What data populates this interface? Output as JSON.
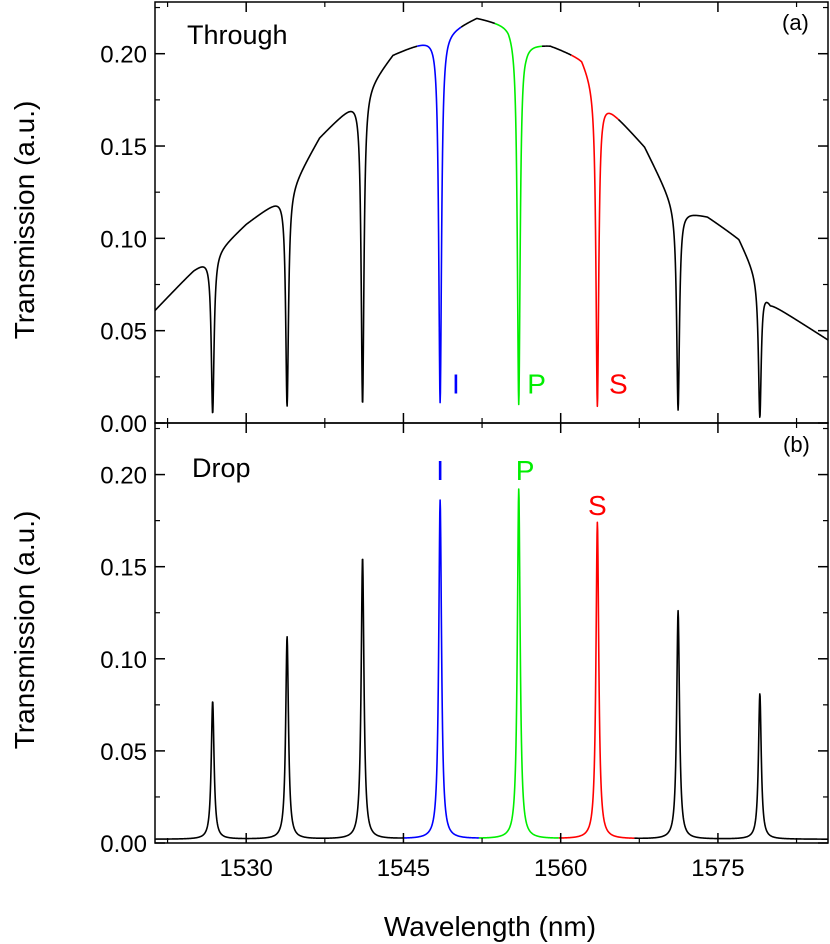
{
  "colors": {
    "background": "#ffffff",
    "axis": "#000000",
    "default_trace": "#000000",
    "I": "#0000ff",
    "P": "#00ee00",
    "S": "#ff0000"
  },
  "x_axis": {
    "label": "Wavelength (nm)",
    "range": [
      1521.3,
      1585.5
    ],
    "ticks": [
      1530,
      1545,
      1560,
      1575
    ],
    "tick_labels": [
      "1530",
      "1545",
      "1560",
      "1575"
    ]
  },
  "chart_data": [
    {
      "type": "line",
      "panel_tag": "(a)",
      "title": "Through",
      "ylabel": "Transmission (a.u.)",
      "ylim": [
        0,
        0.228
      ],
      "yticks": [
        0.0,
        0.05,
        0.1,
        0.15,
        0.2
      ],
      "ytick_labels": [
        "0.00",
        "0.05",
        "0.10",
        "0.15",
        "0.20"
      ],
      "grid": false,
      "baseline_envelope": {
        "x": [
          1521.3,
          1525,
          1527,
          1530,
          1534,
          1537,
          1541,
          1544,
          1547,
          1549,
          1552,
          1555,
          1556.7,
          1559,
          1562,
          1564,
          1568,
          1571,
          1574,
          1577,
          1580,
          1585.5
        ],
        "y": [
          0.061,
          0.083,
          0.092,
          0.108,
          0.125,
          0.155,
          0.178,
          0.2,
          0.207,
          0.212,
          0.22,
          0.216,
          0.206,
          0.205,
          0.198,
          0.175,
          0.15,
          0.116,
          0.112,
          0.1,
          0.065,
          0.045
        ]
      },
      "resonance_dips": [
        {
          "x": 1526.8,
          "min": 0.005,
          "width": 0.16
        },
        {
          "x": 1533.9,
          "min": 0.009,
          "width": 0.16
        },
        {
          "x": 1541.1,
          "min": 0.01,
          "width": 0.16
        },
        {
          "x": 1548.5,
          "min": 0.011,
          "width": 0.16,
          "label": "I"
        },
        {
          "x": 1556.0,
          "min": 0.01,
          "width": 0.16,
          "label": "P"
        },
        {
          "x": 1563.5,
          "min": 0.009,
          "width": 0.16,
          "label": "S"
        },
        {
          "x": 1571.2,
          "min": 0.007,
          "width": 0.16
        },
        {
          "x": 1579.0,
          "min": 0.003,
          "width": 0.16
        }
      ],
      "color_segments": [
        {
          "from": 1546.3,
          "to": 1550.5,
          "color_key": "I"
        },
        {
          "from": 1553.7,
          "to": 1558.2,
          "color_key": "P"
        },
        {
          "from": 1561.0,
          "to": 1565.5,
          "color_key": "S"
        }
      ],
      "annotations": [
        {
          "text": "I",
          "x": 1550.0,
          "y": 0.016,
          "color_key": "I"
        },
        {
          "text": "P",
          "x": 1557.7,
          "y": 0.016,
          "color_key": "P"
        },
        {
          "text": "S",
          "x": 1565.5,
          "y": 0.016,
          "color_key": "S"
        }
      ]
    },
    {
      "type": "line",
      "panel_tag": "(b)",
      "title": "Drop",
      "ylabel": "Transmission (a.u.)",
      "ylim": [
        0,
        0.228
      ],
      "yticks": [
        0.0,
        0.05,
        0.1,
        0.15,
        0.2
      ],
      "ytick_labels": [
        "0.00",
        "0.05",
        "0.10",
        "0.15",
        "0.20"
      ],
      "grid": false,
      "baseline": 0.002,
      "peaks": [
        {
          "x": 1526.8,
          "height": 0.075,
          "width": 0.16
        },
        {
          "x": 1533.9,
          "height": 0.11,
          "width": 0.16
        },
        {
          "x": 1541.1,
          "height": 0.153,
          "width": 0.16
        },
        {
          "x": 1548.5,
          "height": 0.184,
          "width": 0.16,
          "label": "I"
        },
        {
          "x": 1556.0,
          "height": 0.19,
          "width": 0.16,
          "label": "P"
        },
        {
          "x": 1563.5,
          "height": 0.172,
          "width": 0.16,
          "label": "S"
        },
        {
          "x": 1571.2,
          "height": 0.124,
          "width": 0.16
        },
        {
          "x": 1579.0,
          "height": 0.079,
          "width": 0.16
        }
      ],
      "color_segments": [
        {
          "from": 1545.0,
          "to": 1552.2,
          "color_key": "I"
        },
        {
          "from": 1552.2,
          "to": 1559.8,
          "color_key": "P"
        },
        {
          "from": 1559.8,
          "to": 1567.0,
          "color_key": "S"
        }
      ],
      "annotations": [
        {
          "text": "I",
          "x": 1548.5,
          "y": 0.197,
          "color_key": "I"
        },
        {
          "text": "P",
          "x": 1556.6,
          "y": 0.197,
          "color_key": "P"
        },
        {
          "text": "S",
          "x": 1563.5,
          "y": 0.178,
          "color_key": "S"
        }
      ]
    }
  ]
}
